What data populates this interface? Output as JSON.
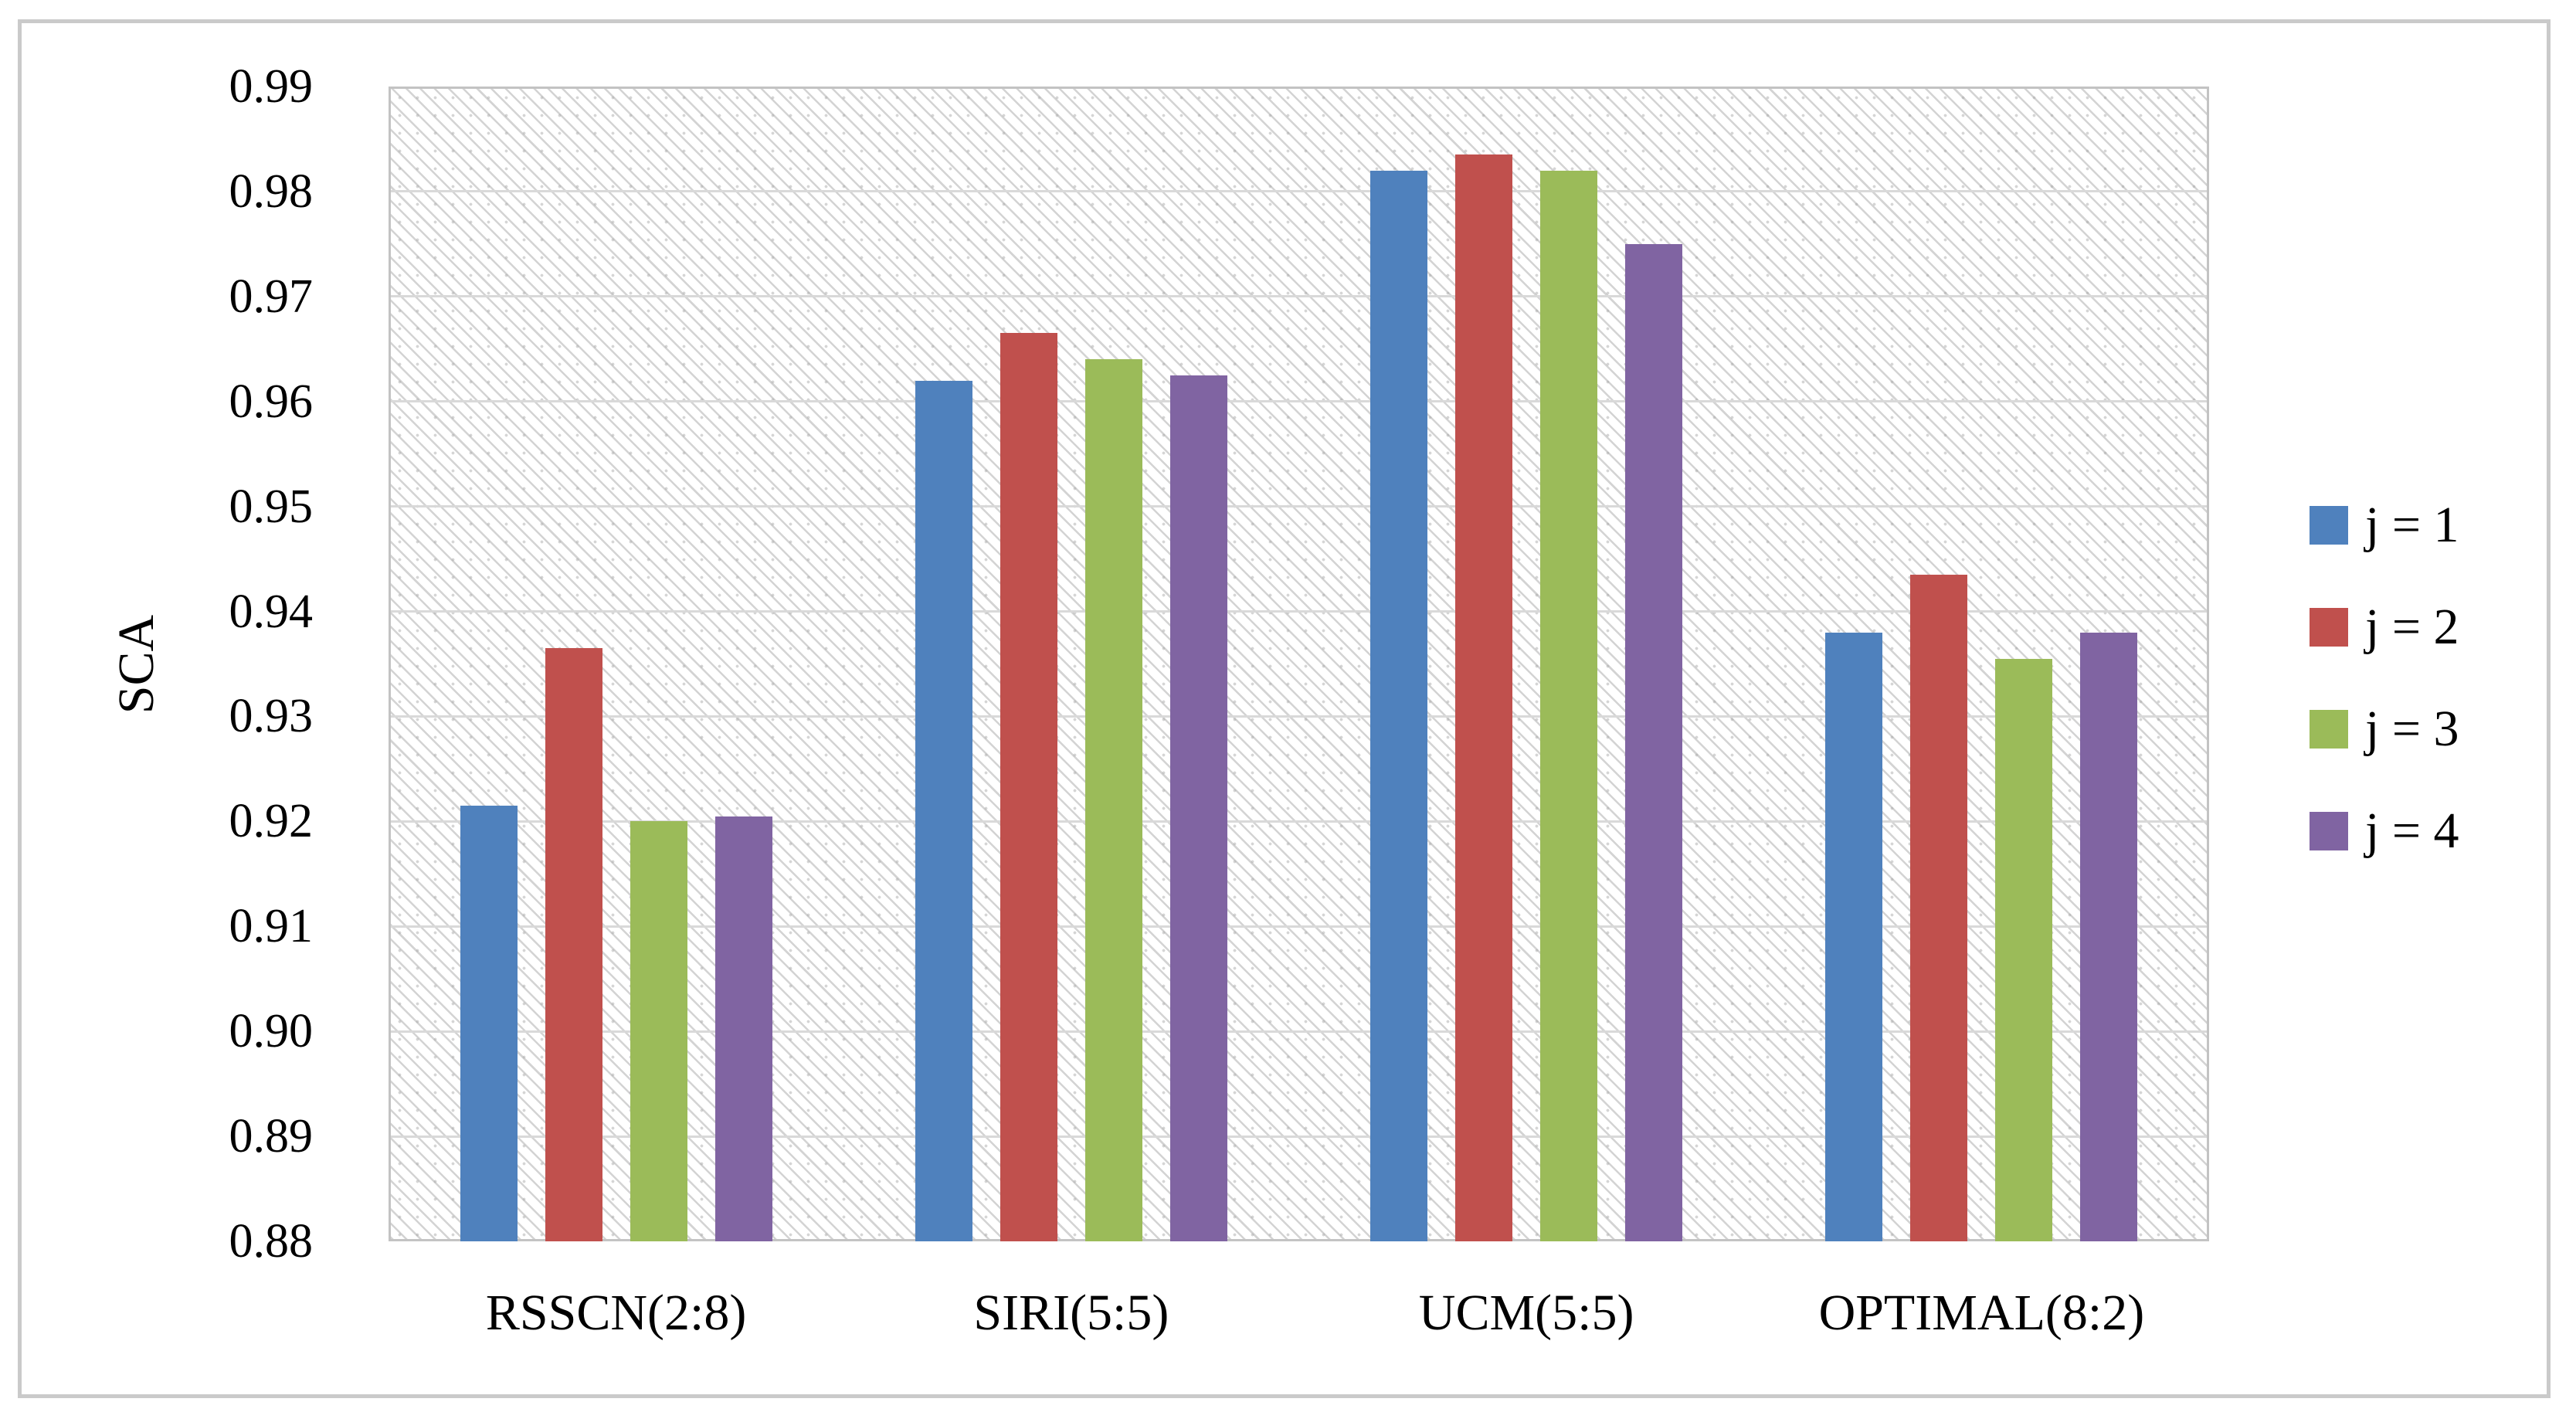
{
  "chart_data": {
    "type": "bar",
    "title": "",
    "xlabel": "",
    "ylabel": "SCA",
    "categories": [
      "RSSCN(2:8)",
      "SIRI(5:5)",
      "UCM(5:5)",
      "OPTIMAL(8:2)"
    ],
    "series": [
      {
        "name": "j = 1",
        "color": "#4F81BD",
        "values": [
          0.9215,
          0.962,
          0.982,
          0.938
        ]
      },
      {
        "name": "j = 2",
        "color": "#C0504D",
        "values": [
          0.9365,
          0.9665,
          0.9835,
          0.9435
        ]
      },
      {
        "name": "j = 3",
        "color": "#9BBB59",
        "values": [
          0.92,
          0.964,
          0.982,
          0.9355
        ]
      },
      {
        "name": "j = 4",
        "color": "#8064A2",
        "values": [
          0.9205,
          0.9625,
          0.975,
          0.938
        ]
      }
    ],
    "ylim": [
      0.88,
      0.99
    ],
    "ytick_step": 0.01,
    "ytick_labels": [
      "0.99",
      "0.98",
      "0.97",
      "0.96",
      "0.95",
      "0.94",
      "0.93",
      "0.92",
      "0.91",
      "0.90",
      "0.89",
      "0.88"
    ],
    "grid": "horizontal",
    "grid_color": "#D9D9D9",
    "plot_border_color": "#C3C3C3",
    "figure_border_color": "#CACACA",
    "plot_background": "light-downward-diagonal-hatch",
    "legend_position": "right-middle"
  }
}
